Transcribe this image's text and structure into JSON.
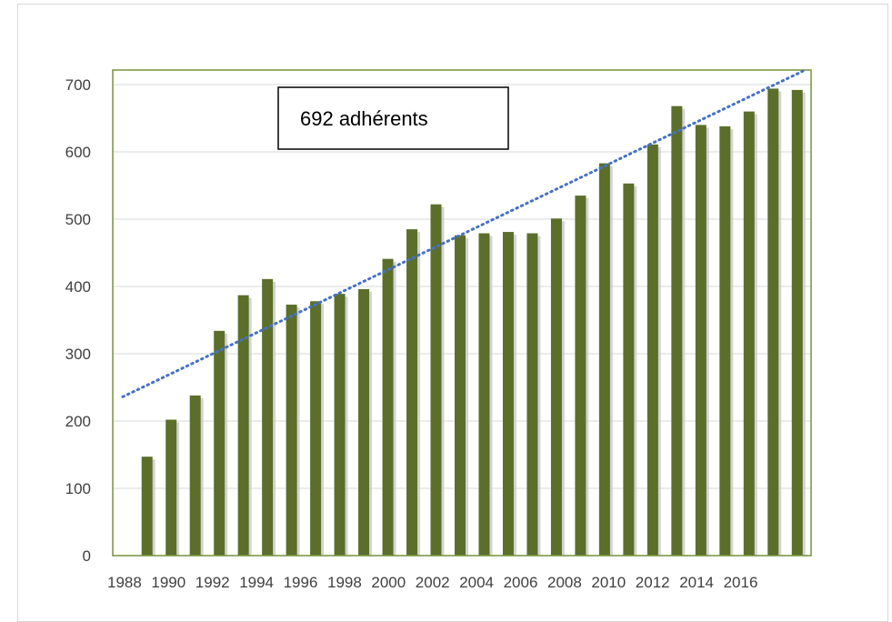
{
  "chart_data": {
    "type": "bar",
    "title": "",
    "xlabel": "",
    "ylabel": "",
    "categories": [
      "1988",
      "1989",
      "1990",
      "1991",
      "1992",
      "1993",
      "1994",
      "1995",
      "1996",
      "1997",
      "1998",
      "1999",
      "2000",
      "2001",
      "2002",
      "2003",
      "2004",
      "2005",
      "2006",
      "2007",
      "2008",
      "2009",
      "2010",
      "2011",
      "2012",
      "2013",
      "2014",
      "2015",
      "2016"
    ],
    "x_tick_labels": [
      "1988",
      "1990",
      "1992",
      "1994",
      "1996",
      "1998",
      "2000",
      "2002",
      "2004",
      "2006",
      "2008",
      "2010",
      "2012",
      "2014",
      "2016"
    ],
    "values": [
      null,
      147,
      202,
      238,
      334,
      387,
      411,
      373,
      378,
      389,
      396,
      441,
      485,
      522,
      476,
      479,
      481,
      479,
      501,
      535,
      583,
      553,
      611,
      668,
      640,
      638,
      660,
      694,
      692
    ],
    "ylim": [
      0,
      720
    ],
    "y_ticks": [
      0,
      100,
      200,
      300,
      400,
      500,
      600,
      700
    ],
    "grid": true,
    "trendline": {
      "type": "linear",
      "style": "dotted",
      "start": 236,
      "end": 720
    },
    "annotation": "692  adhérents",
    "colors": {
      "bar": "#5b6f2b",
      "bar_shadow": "#c9c9c9",
      "plot_border": "#76923c",
      "gridline": "#d9d9d9",
      "trendline": "#4472c4",
      "tick_text": "#404040"
    }
  }
}
